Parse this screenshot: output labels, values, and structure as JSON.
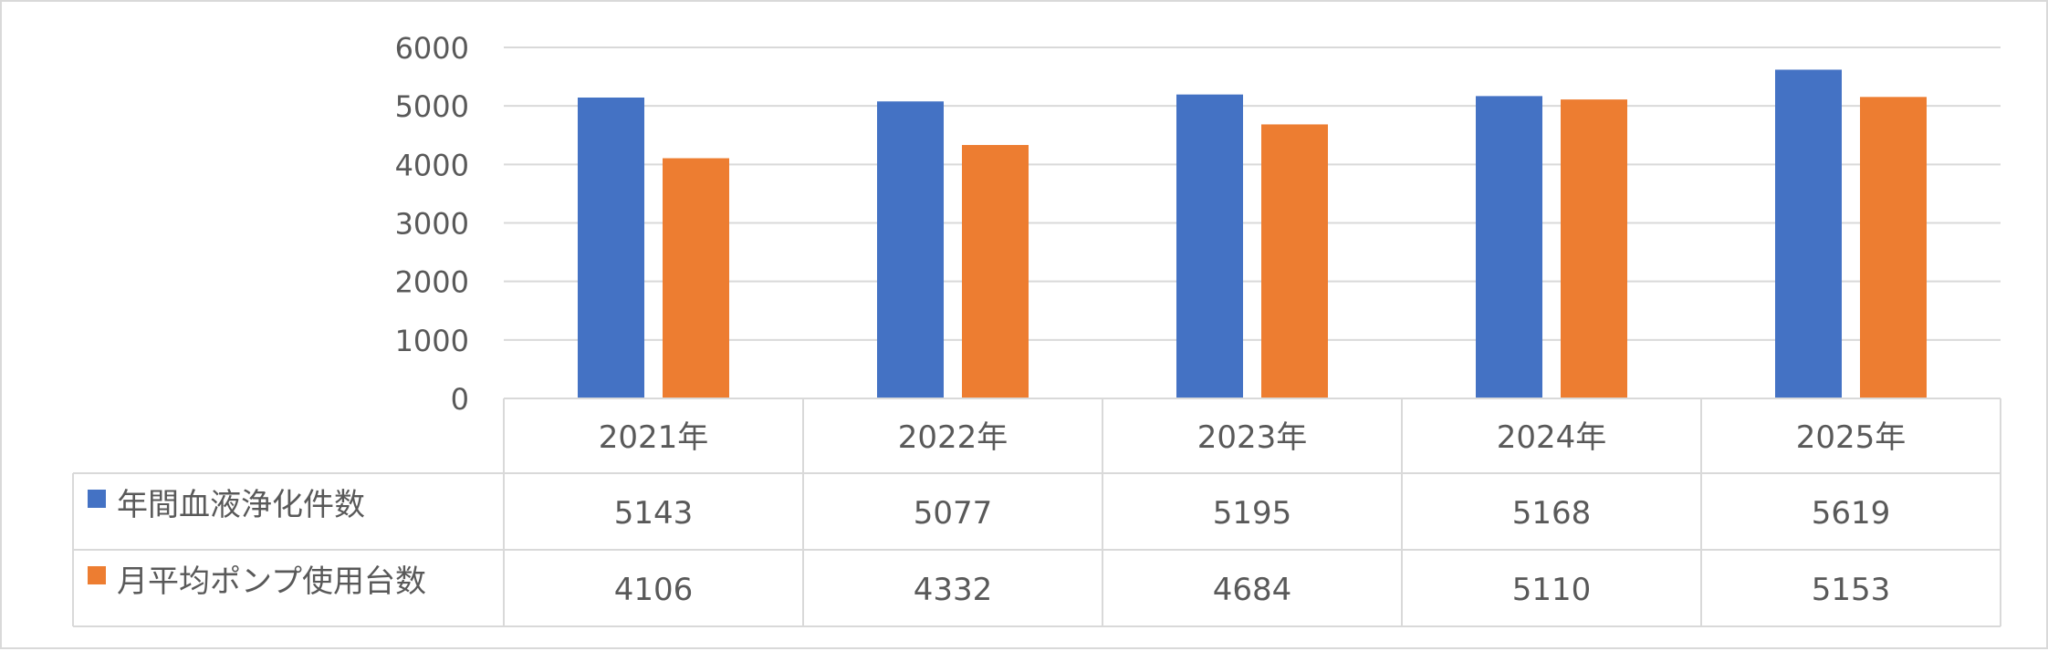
{
  "chart_data": {
    "type": "bar",
    "categories": [
      "2021年",
      "2022年",
      "2023年",
      "2024年",
      "2025年"
    ],
    "series": [
      {
        "name": "年間血液浄化件数",
        "values": [
          5143,
          5077,
          5195,
          5168,
          5619
        ],
        "color": "#4472C4"
      },
      {
        "name": "月平均ポンプ使用台数",
        "values": [
          4106,
          4332,
          4684,
          5110,
          5153
        ],
        "color": "#ED7D31"
      }
    ],
    "y_ticks": [
      "0",
      "1000",
      "2000",
      "3000",
      "4000",
      "5000",
      "6000"
    ],
    "ylim": [
      0,
      6000
    ],
    "grid": true,
    "legend": "data-table",
    "table": {
      "rows": [
        {
          "label": "年間血液浄化件数",
          "values": [
            "5143",
            "5077",
            "5195",
            "5168",
            "5619"
          ]
        },
        {
          "label": "月平均ポンプ使用台数",
          "values": [
            "4106",
            "4332",
            "4684",
            "5110",
            "5153"
          ]
        }
      ]
    },
    "colors": {
      "grid": "#D9D9D9",
      "text": "#595959"
    }
  }
}
